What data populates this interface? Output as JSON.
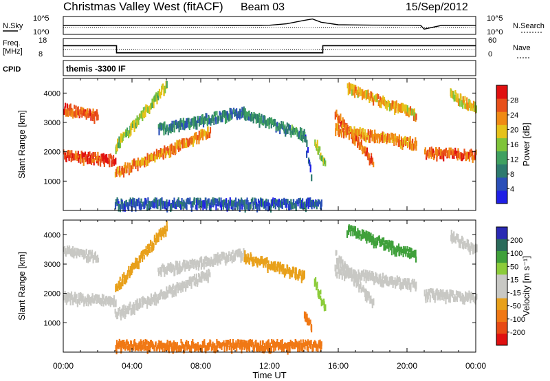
{
  "header": {
    "title": "Christmas Valley West (fitACF)",
    "beam": "Beam 03",
    "date": "15/Sep/2012",
    "program": "themis -3300 IF"
  },
  "colors": {
    "noise_line": "#000000",
    "power_scale": [
      "#1f1fe6",
      "#2a4fb8",
      "#2d7a6e",
      "#3fa060",
      "#7fc43a",
      "#e6c21a",
      "#f08a14",
      "#e8501a",
      "#e01010"
    ],
    "velocity_scale": [
      "#2a2ab4",
      "#2a6a5a",
      "#3fa03a",
      "#8ccc3a",
      "#c8c8c4",
      "#c8c8c4",
      "#e8a01a",
      "#f07814",
      "#e84a14",
      "#e01010"
    ]
  },
  "chart_data": [
    {
      "type": "line",
      "panel": "noise",
      "left_labels": [
        "N.Sky",
        "10^5",
        "10^0"
      ],
      "right_labels": [
        "10^5",
        "10^0",
        "N.Search"
      ],
      "y_scale": "log",
      "ylim": [
        1,
        100000
      ],
      "x": [
        0,
        2,
        4,
        6,
        8,
        10,
        12,
        13,
        14,
        14.5,
        15,
        16,
        18,
        20,
        20.8,
        21,
        22,
        24
      ],
      "series": [
        {
          "values": [
            300,
            320,
            350,
            330,
            340,
            320,
            360,
            900,
            8000,
            20000,
            2500,
            500,
            380,
            360,
            300,
            30,
            320,
            330
          ]
        }
      ]
    },
    {
      "type": "line",
      "panel": "frequency",
      "left_labels": [
        "Freq.",
        "[MHz]",
        "18",
        "8"
      ],
      "right_labels": [
        "60",
        "0",
        "Nave"
      ],
      "ylim": [
        8,
        18
      ],
      "x": [
        0,
        3.1,
        3.1,
        15.1,
        15.1,
        20.8,
        24
      ],
      "series": [
        {
          "values": [
            14,
            14,
            10,
            10,
            14,
            14,
            14
          ]
        }
      ]
    },
    {
      "type": "heatmap",
      "panel": "power",
      "xlabel": "",
      "ylabel": "Slant Range [km]",
      "xlim": [
        0,
        24
      ],
      "ylim": [
        0,
        4500
      ],
      "yticks": [
        1000,
        2000,
        3000,
        4000
      ],
      "colorbar": {
        "label": "Power [dB]",
        "ticks": [
          4,
          8,
          12,
          16,
          20,
          24,
          28
        ],
        "range": [
          0,
          30
        ]
      },
      "bands": [
        {
          "t0": 0.0,
          "t1": 3.0,
          "r0": 1900,
          "r1": 1750,
          "val": 26
        },
        {
          "t0": 0.0,
          "t1": 2.0,
          "r0": 3500,
          "r1": 3250,
          "val": 24
        },
        {
          "t0": 3.0,
          "t1": 8.5,
          "r0": 1300,
          "r1": 2700,
          "val": 22
        },
        {
          "t0": 3.0,
          "t1": 6.0,
          "r0": 2200,
          "r1": 4300,
          "val": 16
        },
        {
          "t0": 5.5,
          "t1": 10.5,
          "r0": 2800,
          "r1": 3400,
          "val": 8
        },
        {
          "t0": 10.5,
          "t1": 14.0,
          "r0": 3300,
          "r1": 2600,
          "val": 10
        },
        {
          "t0": 14.0,
          "t1": 14.4,
          "r0": 2600,
          "r1": 1200,
          "val": 6
        },
        {
          "t0": 14.6,
          "t1": 15.2,
          "r0": 2400,
          "r1": 1600,
          "val": 14
        },
        {
          "t0": 15.8,
          "t1": 18.0,
          "r0": 3300,
          "r1": 1700,
          "val": 24
        },
        {
          "t0": 15.8,
          "t1": 20.5,
          "r0": 2800,
          "r1": 2300,
          "val": 22
        },
        {
          "t0": 16.5,
          "t1": 20.5,
          "r0": 4200,
          "r1": 3300,
          "val": 20
        },
        {
          "t0": 21.0,
          "t1": 24.0,
          "r0": 2000,
          "r1": 1900,
          "val": 24
        },
        {
          "t0": 22.5,
          "t1": 24.0,
          "r0": 4000,
          "r1": 3500,
          "val": 18
        },
        {
          "t0": 3.0,
          "t1": 15.0,
          "r0": 250,
          "r1": 250,
          "val": 6
        }
      ]
    },
    {
      "type": "heatmap",
      "panel": "velocity",
      "xlabel": "Time UT",
      "ylabel": "Slant Range [km]",
      "xlim": [
        0,
        24
      ],
      "ylim": [
        0,
        4500
      ],
      "yticks": [
        1000,
        2000,
        3000,
        4000
      ],
      "xticks": [
        "00:00",
        "04:00",
        "08:00",
        "12:00",
        "16:00",
        "20:00",
        "00:00"
      ],
      "colorbar": {
        "label": "Velocity [m s⁻¹]",
        "ticks": [
          "200",
          "100",
          "50",
          "15",
          "-15",
          "-50",
          "-100",
          "-200"
        ]
      },
      "bands": [
        {
          "t0": 0.0,
          "t1": 3.0,
          "r0": 1900,
          "r1": 1750,
          "val": 0
        },
        {
          "t0": 0.0,
          "t1": 2.0,
          "r0": 3500,
          "r1": 3250,
          "val": 0
        },
        {
          "t0": 3.0,
          "t1": 8.5,
          "r0": 1300,
          "r1": 2700,
          "val": 0
        },
        {
          "t0": 3.0,
          "t1": 6.0,
          "r0": 2200,
          "r1": 4300,
          "val": -40
        },
        {
          "t0": 5.5,
          "t1": 10.5,
          "r0": 2800,
          "r1": 3400,
          "val": 0
        },
        {
          "t0": 10.5,
          "t1": 14.0,
          "r0": 3300,
          "r1": 2600,
          "val": -20
        },
        {
          "t0": 14.0,
          "t1": 14.4,
          "r0": 1400,
          "r1": 900,
          "val": -80
        },
        {
          "t0": 14.6,
          "t1": 15.2,
          "r0": 2400,
          "r1": 1600,
          "val": 40
        },
        {
          "t0": 15.8,
          "t1": 18.0,
          "r0": 3300,
          "r1": 1700,
          "val": 0
        },
        {
          "t0": 15.8,
          "t1": 20.5,
          "r0": 2800,
          "r1": 2300,
          "val": 0
        },
        {
          "t0": 16.5,
          "t1": 20.5,
          "r0": 4200,
          "r1": 3300,
          "val": 60
        },
        {
          "t0": 21.0,
          "t1": 24.0,
          "r0": 2000,
          "r1": 1900,
          "val": 0
        },
        {
          "t0": 22.5,
          "t1": 24.0,
          "r0": 4000,
          "r1": 3500,
          "val": 0
        },
        {
          "t0": 3.0,
          "t1": 15.0,
          "r0": 250,
          "r1": 250,
          "val": -60
        }
      ]
    }
  ]
}
